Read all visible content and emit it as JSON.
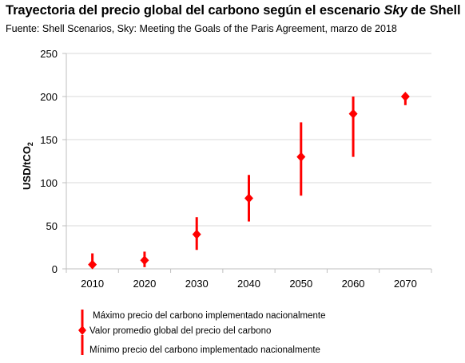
{
  "header": {
    "title_prefix": "Trayectoria del precio global del carbono según el escenario ",
    "title_emph": "Sky",
    "title_suffix": " de Shell",
    "subtitle": "Fuente: Shell Scenarios, Sky: Meeting the Goals of the Paris Agreement, marzo de 2018"
  },
  "chart_data": {
    "type": "scatter",
    "title": "Trayectoria del precio global del carbono según el escenario Sky de Shell",
    "subtitle": "Fuente: Shell Scenarios, Sky: Meeting the Goals of the Paris Agreement, marzo de 2018",
    "xlabel": "",
    "ylabel_main": "USD/tCO",
    "ylabel_sub": "2",
    "ylim": [
      0,
      250
    ],
    "yticks": [
      "0",
      "50",
      "100",
      "150",
      "200",
      "250"
    ],
    "categories": [
      "2010",
      "2020",
      "2030",
      "2040",
      "2050",
      "2060",
      "2070"
    ],
    "series": [
      {
        "name": "Valor promedio global del precio del carbono",
        "values": [
          5,
          10,
          40,
          82,
          130,
          180,
          200
        ]
      },
      {
        "name": "Máximo  precio del carbono implementado nacionalmente",
        "values": [
          18,
          20,
          60,
          109,
          170,
          200,
          200
        ]
      },
      {
        "name": "Mínimo precio del carbono implementado nacionalmente",
        "values": [
          2,
          2,
          22,
          55,
          85,
          130,
          190
        ]
      }
    ],
    "grid": true,
    "legend_position": "bottom-left",
    "colors": {
      "marker": "#ff0000",
      "grid": "#d9d9d9",
      "axis": "#bfbfbf"
    }
  },
  "legend": {
    "max_label": "Máximo  precio del carbono implementado nacionalmente",
    "avg_label": "Valor promedio global del precio del carbono",
    "min_label": "Mínimo precio del carbono implementado nacionalmente"
  }
}
